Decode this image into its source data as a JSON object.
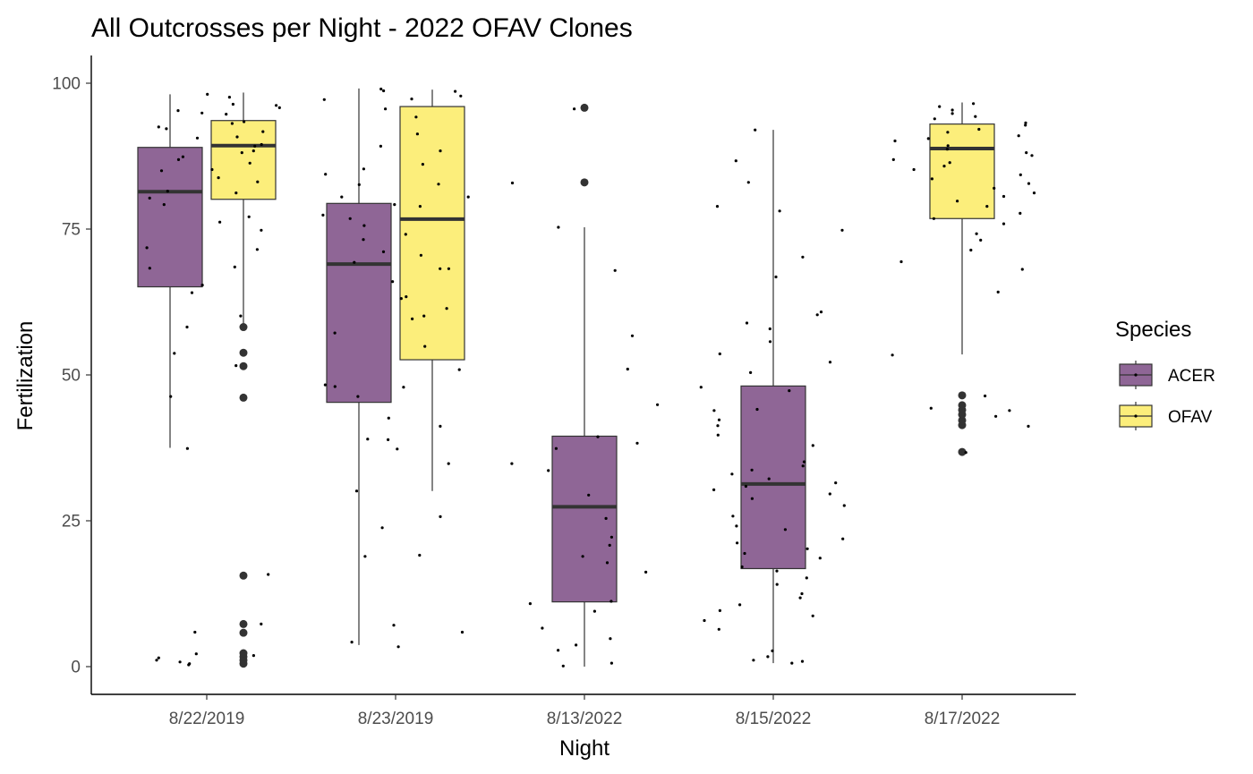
{
  "chart_data": {
    "type": "boxplot",
    "title": "All Outcrosses per Night - 2022 OFAV Clones",
    "xlabel": "Night",
    "ylabel": "Fertilization",
    "categories": [
      "8/22/2019",
      "8/23/2019",
      "8/13/2022",
      "8/15/2022",
      "8/17/2022"
    ],
    "ylim": [
      -5,
      105
    ],
    "yticks": [
      0,
      25,
      50,
      75,
      100
    ],
    "grid": false,
    "legend": {
      "title": "Species",
      "position": "right",
      "entries": [
        {
          "name": "ACER",
          "color": "#8f6696"
        },
        {
          "name": "OFAV",
          "color": "#fcee7b"
        }
      ]
    },
    "series": [
      {
        "name": "ACER",
        "color": "#8f6696",
        "boxes": [
          {
            "category": "8/22/2019",
            "lower_whisker": 37.5,
            "q1": 65.1,
            "median": 81.4,
            "q3": 89.0,
            "upper_whisker": 98.1,
            "outliers": []
          },
          {
            "category": "8/23/2019",
            "lower_whisker": 3.7,
            "q1": 45.3,
            "median": 69.0,
            "q3": 79.4,
            "upper_whisker": 99.1,
            "outliers": []
          },
          {
            "category": "8/13/2022",
            "lower_whisker": 0.0,
            "q1": 11.1,
            "median": 27.4,
            "q3": 39.5,
            "upper_whisker": 75.3,
            "outliers": [
              83.0,
              95.8
            ]
          },
          {
            "category": "8/15/2022",
            "lower_whisker": 0.6,
            "q1": 16.8,
            "median": 31.3,
            "q3": 48.1,
            "upper_whisker": 92.0,
            "outliers": []
          }
        ]
      },
      {
        "name": "OFAV",
        "color": "#fcee7b",
        "boxes": [
          {
            "category": "8/22/2019",
            "lower_whisker": 58.3,
            "q1": 80.1,
            "median": 89.3,
            "q3": 93.6,
            "upper_whisker": 98.4,
            "outliers": [
              0.5,
              1.1,
              1.7,
              2.3,
              5.8,
              7.3,
              15.6,
              46.1,
              51.5,
              53.8,
              58.2
            ]
          },
          {
            "category": "8/23/2019",
            "lower_whisker": 30.1,
            "q1": 52.6,
            "median": 76.7,
            "q3": 96.0,
            "upper_whisker": 98.9,
            "outliers": []
          },
          {
            "category": "8/17/2022",
            "lower_whisker": 53.5,
            "q1": 76.8,
            "median": 88.8,
            "q3": 93.0,
            "upper_whisker": 96.7,
            "outliers": [
              36.8,
              41.4,
              42.2,
              43.2,
              44.0,
              44.8,
              46.5
            ]
          }
        ]
      }
    ],
    "jitter_points": {
      "8/22/2019": [
        97.6,
        95.3,
        94.7,
        95.8,
        96.4,
        93.1,
        92.5,
        91.7,
        90.8,
        89.2,
        88.1,
        87.4,
        86.3,
        85.0,
        83.8,
        81.5,
        79.2,
        77.1,
        74.8,
        71.5,
        68.3,
        65.4,
        60.1,
        58.2,
        53.7,
        37.4,
        15.8,
        7.3,
        5.9,
        2.2,
        1.9,
        1.5,
        1.1,
        0.8,
        0.3,
        98.1,
        96.2,
        94.9,
        93.4,
        92.2,
        90.6,
        89.5,
        88.4,
        86.9,
        85.2,
        83.1,
        81.2,
        80.3,
        76.2,
        71.8,
        68.5,
        64.1,
        51.6,
        46.3,
        0.5
      ],
      "8/23/2019": [
        99.0,
        98.7,
        97.8,
        95.6,
        84.4,
        82.6,
        80.5,
        78.9,
        77.4,
        75.6,
        73.2,
        71.1,
        69.3,
        68.2,
        66.0,
        63.1,
        61.4,
        59.6,
        54.9,
        48.3,
        47.9,
        38.9,
        37.3,
        19.1,
        18.9,
        7.1,
        5.9,
        4.2,
        3.4,
        98.6,
        97.3,
        97.2,
        94.2,
        91.3,
        89.2,
        88.4,
        86.1,
        85.3,
        82.7,
        80.5,
        79.2,
        76.8,
        74.1,
        70.5,
        68.2,
        63.4,
        60.1,
        57.2,
        50.9,
        48.0,
        46.3,
        42.6,
        41.2,
        39.0,
        34.8,
        30.1,
        25.7,
        23.8
      ],
      "8/13/2022": [
        95.6,
        82.9,
        75.3,
        67.9,
        56.7,
        51.0,
        44.9,
        39.4,
        38.3,
        37.4,
        34.8,
        33.6,
        29.4,
        25.4,
        22.2,
        20.8,
        18.9,
        17.8,
        16.2,
        11.2,
        10.8,
        9.5,
        6.6,
        4.8,
        3.7,
        2.8,
        0.6,
        0.1
      ],
      "8/15/2022": [
        92.0,
        86.7,
        83.0,
        78.9,
        78.1,
        74.8,
        70.2,
        66.8,
        60.8,
        60.3,
        58.9,
        57.9,
        55.7,
        53.6,
        52.2,
        50.4,
        47.9,
        47.3,
        44.1,
        43.9,
        42.3,
        41.3,
        39.7,
        37.9,
        35.1,
        34.4,
        33.7,
        33.0,
        32.2,
        31.5,
        30.9,
        30.3,
        29.6,
        28.8,
        27.6,
        25.8,
        24.1,
        23.5,
        21.9,
        21.2,
        20.2,
        19.4,
        18.6,
        17.1,
        16.4,
        15.2,
        14.1,
        12.5,
        11.8,
        10.6,
        9.6,
        8.7,
        7.9,
        6.4,
        2.7,
        1.7,
        1.1,
        0.9,
        0.6
      ],
      "8/17/2022": [
        96.5,
        96.0,
        95.4,
        94.8,
        94.3,
        93.9,
        93.2,
        92.8,
        92.1,
        91.6,
        91.0,
        90.5,
        90.1,
        89.3,
        88.7,
        88.1,
        87.6,
        86.9,
        86.4,
        85.8,
        85.2,
        84.3,
        83.6,
        82.8,
        82.0,
        81.2,
        80.6,
        79.8,
        78.9,
        77.7,
        76.8,
        75.9,
        74.2,
        73.1,
        71.4,
        69.4,
        68.1,
        64.2,
        53.4,
        46.4,
        44.3,
        43.9,
        42.9,
        41.2,
        36.7
      ]
    }
  }
}
